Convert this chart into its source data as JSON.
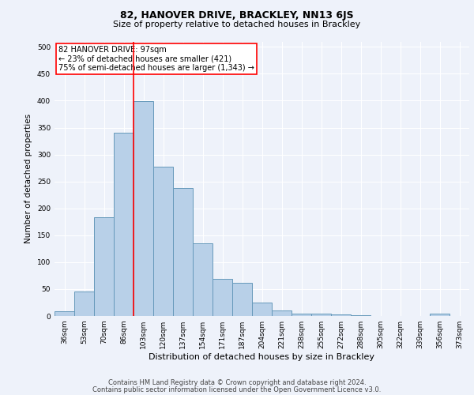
{
  "title_line1": "82, HANOVER DRIVE, BRACKLEY, NN13 6JS",
  "title_line2": "Size of property relative to detached houses in Brackley",
  "xlabel": "Distribution of detached houses by size in Brackley",
  "ylabel": "Number of detached properties",
  "footer_line1": "Contains HM Land Registry data © Crown copyright and database right 2024.",
  "footer_line2": "Contains public sector information licensed under the Open Government Licence v3.0.",
  "categories": [
    "36sqm",
    "53sqm",
    "70sqm",
    "86sqm",
    "103sqm",
    "120sqm",
    "137sqm",
    "154sqm",
    "171sqm",
    "187sqm",
    "204sqm",
    "221sqm",
    "238sqm",
    "255sqm",
    "272sqm",
    "288sqm",
    "305sqm",
    "322sqm",
    "339sqm",
    "356sqm",
    "373sqm"
  ],
  "values": [
    9,
    46,
    183,
    340,
    399,
    278,
    238,
    135,
    69,
    61,
    25,
    11,
    5,
    4,
    3,
    2,
    0,
    0,
    0,
    5,
    0
  ],
  "bar_color": "#b8d0e8",
  "bar_edgecolor": "#6699bb",
  "vline_color": "red",
  "vline_x_index": 3.5,
  "annotation_text": "82 HANOVER DRIVE: 97sqm\n← 23% of detached houses are smaller (421)\n75% of semi-detached houses are larger (1,343) →",
  "annotation_box_color": "white",
  "annotation_box_edgecolor": "red",
  "ylim": [
    0,
    510
  ],
  "yticks": [
    0,
    50,
    100,
    150,
    200,
    250,
    300,
    350,
    400,
    450,
    500
  ],
  "background_color": "#eef2fa",
  "title_fontsize": 9,
  "subtitle_fontsize": 8,
  "xlabel_fontsize": 8,
  "ylabel_fontsize": 7.5,
  "tick_fontsize": 6.5,
  "annot_fontsize": 7,
  "footer_fontsize": 6
}
